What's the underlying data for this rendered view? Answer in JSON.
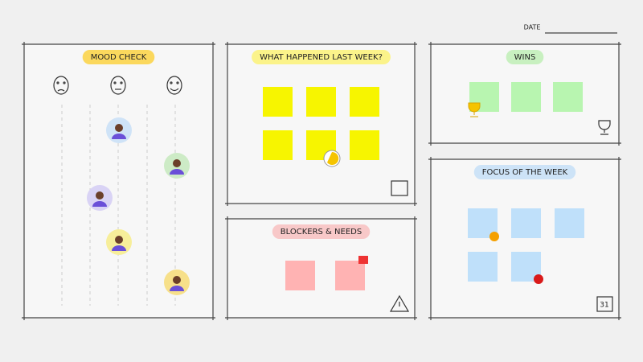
{
  "header": {
    "date_label": "DATE"
  },
  "panels": [
    {
      "title": "MOOD CHECK"
    },
    {
      "title": "WHAT HAPPENED LAST WEEK?"
    },
    {
      "title": "WINS"
    },
    {
      "title": "BLOCKERS & NEEDS"
    },
    {
      "title": "FOCUS OF THE WEEK",
      "calendar_day": "31"
    }
  ]
}
